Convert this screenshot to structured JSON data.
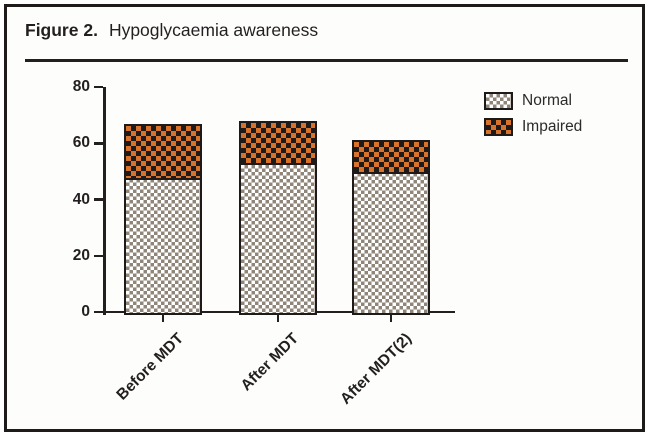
{
  "figure": {
    "label": "Figure 2.",
    "title": "Hypoglycaemia awareness"
  },
  "chart_data": {
    "type": "bar",
    "stacked": true,
    "title": "",
    "xlabel": "",
    "ylabel": "",
    "categories": [
      "Before MDT",
      "After MDT",
      "After MDT(2)"
    ],
    "series": [
      {
        "name": "Normal",
        "values": [
          48,
          53,
          50
        ],
        "fill_color": "#ffffff",
        "pattern_color": "#8f8679",
        "pattern": "normal-check"
      },
      {
        "name": "Impaired",
        "values": [
          19,
          15,
          11
        ],
        "fill_color": "#d8732c",
        "pattern_color": "#1d1a19",
        "pattern": "impaired-check"
      }
    ],
    "stack_totals": [
      67,
      68,
      61
    ],
    "ylim": [
      0,
      80
    ],
    "yticks": [
      0,
      20,
      40,
      60,
      80
    ],
    "grid": false,
    "legend_position": "top-right",
    "axis_color": "#231f20"
  }
}
